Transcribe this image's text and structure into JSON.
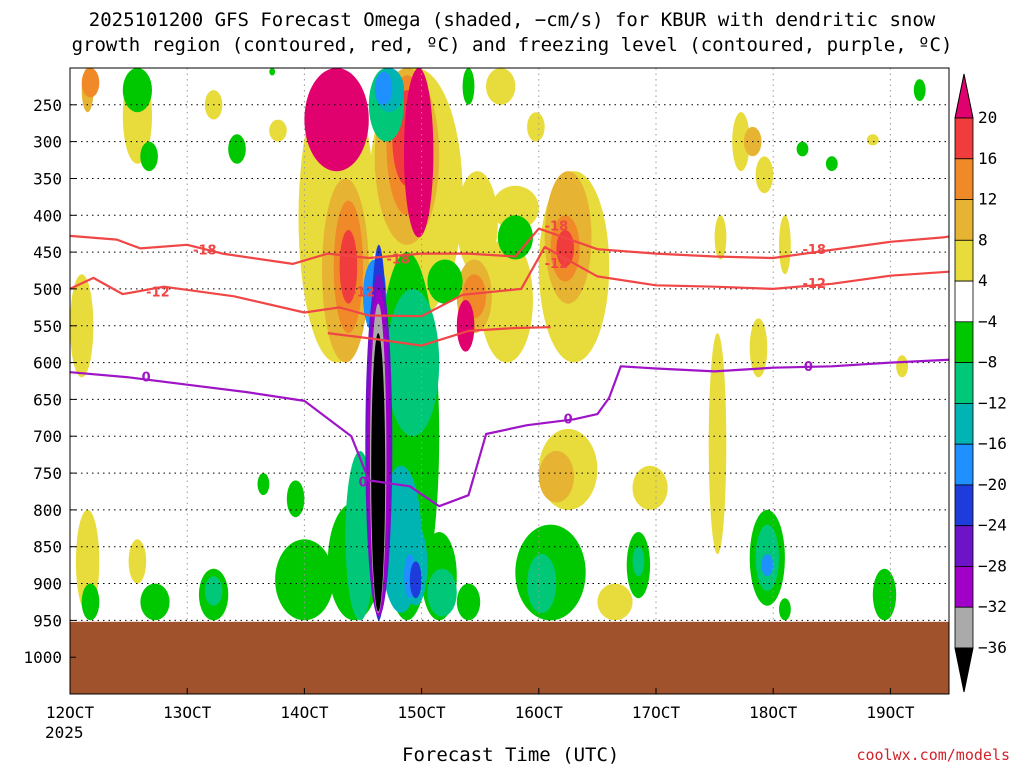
{
  "title": {
    "line1": "2025101200 GFS Forecast Omega (shaded, −cm/s) for KBUR with dendritic snow",
    "line2": "growth region (contoured, red, ºC) and freezing level (contoured, purple, ºC)"
  },
  "credit": "coolwx.com/models",
  "chart_data": {
    "type": "heatmap",
    "title": "2025101200 GFS Forecast Omega (shaded, −cm/s) for KBUR with dendritic snow growth region (contoured, red, ºC) and freezing level (contoured, purple, ºC)",
    "xlabel": "Forecast Time (UTC)",
    "ylabel": "",
    "x_ticks": [
      "12OCT",
      "13OCT",
      "14OCT",
      "15OCT",
      "16OCT",
      "17OCT",
      "18OCT",
      "19OCT"
    ],
    "x_tick_values_day": [
      12,
      13,
      14,
      15,
      16,
      17,
      18,
      19
    ],
    "x_year_label": "2025",
    "xlim_day": [
      12,
      19.65
    ],
    "y_ticks": [
      250,
      300,
      350,
      400,
      450,
      500,
      550,
      600,
      650,
      700,
      750,
      800,
      850,
      900,
      950,
      1000
    ],
    "ylim_hpa": [
      200,
      1050
    ],
    "ground_pressure_hpa": 952,
    "colorbar": {
      "labels": [
        "20",
        "16",
        "12",
        "8",
        "4",
        "−4",
        "−8",
        "−12",
        "−16",
        "−20",
        "−24",
        "−28",
        "−32",
        "−36"
      ],
      "colors": [
        "#e0006e",
        "#f03c3c",
        "#f08a28",
        "#e6b432",
        "#e8dc3c",
        "#ffffff",
        "#00c800",
        "#00c878",
        "#00b4b4",
        "#1e90ff",
        "#1e3cdc",
        "#6e14c8",
        "#a000c8",
        "#aaaaaa",
        "#000000"
      ]
    },
    "contours": [
      {
        "label": "-18",
        "color": "#f04646",
        "points": [
          [
            12.0,
            428
          ],
          [
            12.4,
            433
          ],
          [
            12.6,
            445
          ],
          [
            13.0,
            440
          ],
          [
            13.3,
            452
          ],
          [
            13.9,
            466
          ],
          [
            14.2,
            452
          ],
          [
            14.55,
            458
          ],
          [
            15.0,
            452
          ],
          [
            15.4,
            452
          ],
          [
            15.8,
            456
          ],
          [
            16.0,
            418
          ],
          [
            16.5,
            446
          ],
          [
            17.0,
            452
          ],
          [
            17.5,
            456
          ],
          [
            18.0,
            458
          ],
          [
            18.5,
            447
          ],
          [
            19.0,
            436
          ],
          [
            19.45,
            430
          ],
          [
            19.65,
            425
          ]
        ]
      },
      {
        "label": "-12",
        "color": "#f04646",
        "points": [
          [
            12.0,
            500
          ],
          [
            12.2,
            485
          ],
          [
            12.45,
            507
          ],
          [
            12.8,
            497
          ],
          [
            13.4,
            510
          ],
          [
            14.0,
            532
          ],
          [
            14.3,
            525
          ],
          [
            14.55,
            536
          ],
          [
            15.0,
            537
          ],
          [
            15.35,
            508
          ],
          [
            15.85,
            500
          ],
          [
            16.05,
            443
          ],
          [
            16.5,
            483
          ],
          [
            17.0,
            495
          ],
          [
            17.5,
            497
          ],
          [
            18.0,
            500
          ],
          [
            18.5,
            493
          ],
          [
            19.0,
            482
          ],
          [
            19.65,
            475
          ]
        ]
      },
      {
        "label": "-12 lower",
        "color": "#f04646",
        "points": [
          [
            14.2,
            560
          ],
          [
            14.6,
            568
          ],
          [
            15.0,
            577
          ],
          [
            15.4,
            557
          ],
          [
            15.8,
            553
          ],
          [
            16.1,
            552
          ]
        ]
      },
      {
        "label": "0",
        "color": "#a014c8",
        "points": [
          [
            12.0,
            613
          ],
          [
            12.5,
            620
          ],
          [
            13.0,
            630
          ],
          [
            13.5,
            640
          ],
          [
            14.0,
            652
          ],
          [
            14.4,
            700
          ],
          [
            14.55,
            760
          ],
          [
            14.9,
            768
          ],
          [
            15.15,
            795
          ],
          [
            15.4,
            780
          ],
          [
            15.55,
            697
          ],
          [
            15.9,
            685
          ],
          [
            16.3,
            677
          ],
          [
            16.5,
            670
          ],
          [
            16.6,
            648
          ],
          [
            16.7,
            605
          ],
          [
            17.0,
            608
          ],
          [
            17.5,
            612
          ],
          [
            18.0,
            607
          ],
          [
            18.5,
            605
          ],
          [
            19.0,
            600
          ],
          [
            19.65,
            595
          ]
        ]
      }
    ],
    "omega_features": [
      {
        "day": 14.6,
        "p_top": 360,
        "p_bot": 950,
        "min_value": -36
      },
      {
        "day": 14.9,
        "p_top": 200,
        "p_bot": 430,
        "max_value": 20
      },
      {
        "day": 15.35,
        "p_top": 500,
        "p_bot": 600,
        "max_value": 20
      },
      {
        "day": 16.2,
        "p_top": 400,
        "p_bot": 550,
        "max_value": 16
      },
      {
        "day": 14.35,
        "p_top": 400,
        "p_bot": 650,
        "max_value": 16
      }
    ]
  }
}
